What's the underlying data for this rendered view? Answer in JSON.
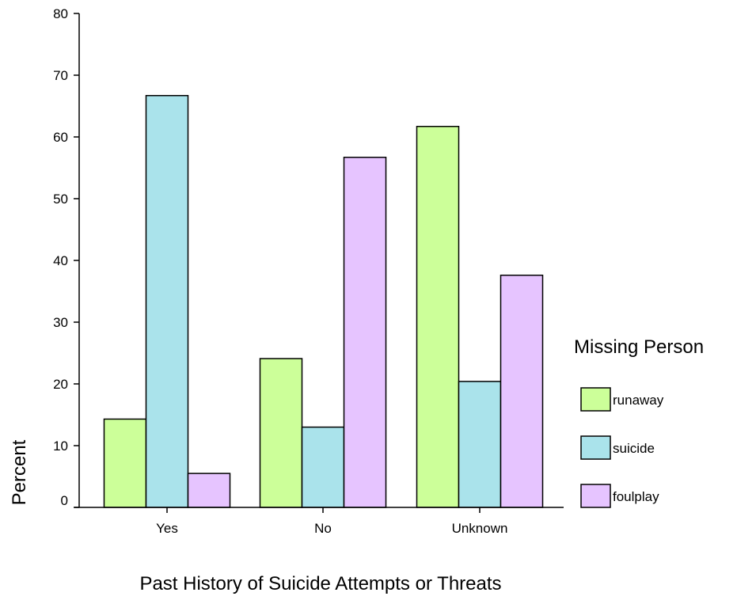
{
  "chart_data": {
    "type": "bar",
    "title": "",
    "xlabel": "Past History of Suicide Attempts or Threats",
    "ylabel": "Percent",
    "categories": [
      "Yes",
      "No",
      "Unknown"
    ],
    "ylim": [
      0,
      80
    ],
    "yticks": [
      0,
      10,
      20,
      30,
      40,
      50,
      60,
      70,
      80
    ],
    "grid": false,
    "legend": {
      "title": "Missing Person",
      "position": "right"
    },
    "series": [
      {
        "name": "runaway",
        "color": "#ccff99",
        "values": [
          14.3,
          24.1,
          61.7
        ]
      },
      {
        "name": "suicide",
        "color": "#aae3eb",
        "values": [
          66.7,
          13.0,
          20.4
        ]
      },
      {
        "name": "foulplay",
        "color": "#e6c4ff",
        "values": [
          5.5,
          56.7,
          37.6
        ]
      }
    ]
  }
}
